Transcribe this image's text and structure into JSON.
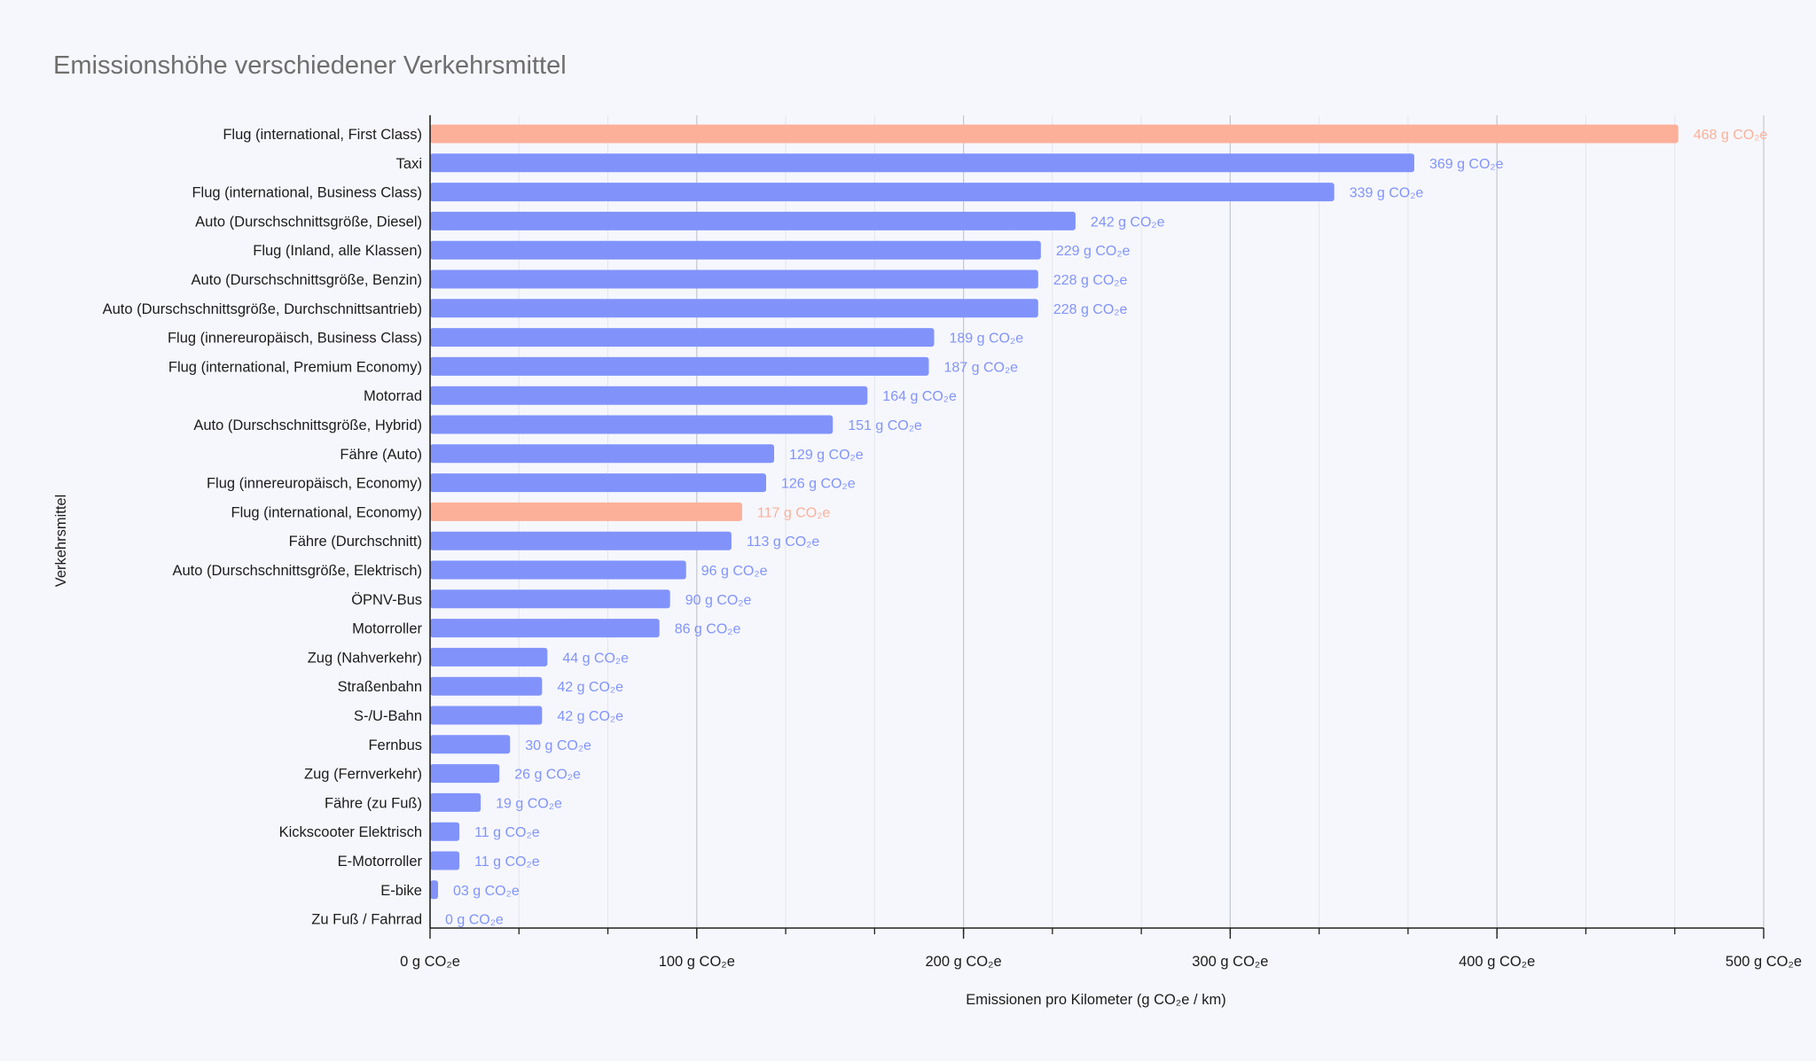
{
  "chart_data": {
    "type": "bar",
    "orientation": "horizontal",
    "title": "Emissionshöhe verschiedener Verkehrsmittel",
    "xlabel": "Emissionen pro Kilometer (g CO₂e / km)",
    "ylabel": "Verkehrsmittel",
    "xlim": [
      0,
      500
    ],
    "xticks": [
      {
        "value": 0,
        "label": "0 g CO₂e"
      },
      {
        "value": 100,
        "label": "100 g CO₂e"
      },
      {
        "value": 200,
        "label": "200 g CO₂e"
      },
      {
        "value": 300,
        "label": "300 g CO₂e"
      },
      {
        "value": 400,
        "label": "400 g CO₂e"
      },
      {
        "value": 500,
        "label": "500 g CO₂e"
      }
    ],
    "minor_tick_step": 33.333,
    "grid": true,
    "colors": {
      "default": "#8193fb",
      "highlight": "#fcb09a"
    },
    "bars": [
      {
        "category": "Flug (international, First Class)",
        "value": 468,
        "label": "468 g CO₂e",
        "highlight": true
      },
      {
        "category": "Taxi",
        "value": 369,
        "label": "369 g CO₂e"
      },
      {
        "category": "Flug (international, Business Class)",
        "value": 339,
        "label": "339 g CO₂e"
      },
      {
        "category": "Auto (Durschschnittsgröße, Diesel)",
        "value": 242,
        "label": "242 g CO₂e"
      },
      {
        "category": "Flug (Inland, alle Klassen)",
        "value": 229,
        "label": "229 g CO₂e"
      },
      {
        "category": "Auto (Durschschnittsgröße, Benzin)",
        "value": 228,
        "label": "228 g CO₂e"
      },
      {
        "category": "Auto (Durschschnittsgröße, Durchschnittsantrieb)",
        "value": 228,
        "label": "228 g CO₂e"
      },
      {
        "category": "Flug (innereuropäisch, Business Class)",
        "value": 189,
        "label": "189 g CO₂e"
      },
      {
        "category": "Flug (international, Premium Economy)",
        "value": 187,
        "label": "187 g CO₂e"
      },
      {
        "category": "Motorrad",
        "value": 164,
        "label": "164 g CO₂e"
      },
      {
        "category": "Auto (Durschschnittsgröße, Hybrid)",
        "value": 151,
        "label": "151 g CO₂e"
      },
      {
        "category": "Fähre (Auto)",
        "value": 129,
        "label": "129 g CO₂e"
      },
      {
        "category": "Flug (innereuropäisch, Economy)",
        "value": 126,
        "label": "126 g CO₂e"
      },
      {
        "category": "Flug (international, Economy)",
        "value": 117,
        "label": "117 g CO₂e",
        "highlight": true
      },
      {
        "category": "Fähre (Durchschnitt)",
        "value": 113,
        "label": "113 g CO₂e"
      },
      {
        "category": "Auto (Durschschnittsgröße, Elektrisch)",
        "value": 96,
        "label": "96 g CO₂e"
      },
      {
        "category": "ÖPNV-Bus",
        "value": 90,
        "label": "90 g CO₂e"
      },
      {
        "category": "Motorroller",
        "value": 86,
        "label": "86 g CO₂e"
      },
      {
        "category": "Zug (Nahverkehr)",
        "value": 44,
        "label": "44 g CO₂e"
      },
      {
        "category": "Straßenbahn",
        "value": 42,
        "label": "42 g CO₂e"
      },
      {
        "category": "S-/U-Bahn",
        "value": 42,
        "label": "42 g CO₂e"
      },
      {
        "category": "Fernbus",
        "value": 30,
        "label": "30 g CO₂e"
      },
      {
        "category": "Zug (Fernverkehr)",
        "value": 26,
        "label": "26 g CO₂e"
      },
      {
        "category": "Fähre (zu Fuß)",
        "value": 19,
        "label": "19 g CO₂e"
      },
      {
        "category": "Kickscooter Elektrisch",
        "value": 11,
        "label": "11 g CO₂e"
      },
      {
        "category": "E-Motorroller",
        "value": 11,
        "label": "11 g CO₂e"
      },
      {
        "category": "E-bike",
        "value": 3,
        "label": "03 g CO₂e"
      },
      {
        "category": "Zu Fuß / Fahrrad",
        "value": 0,
        "label": "0 g CO₂e"
      }
    ]
  }
}
